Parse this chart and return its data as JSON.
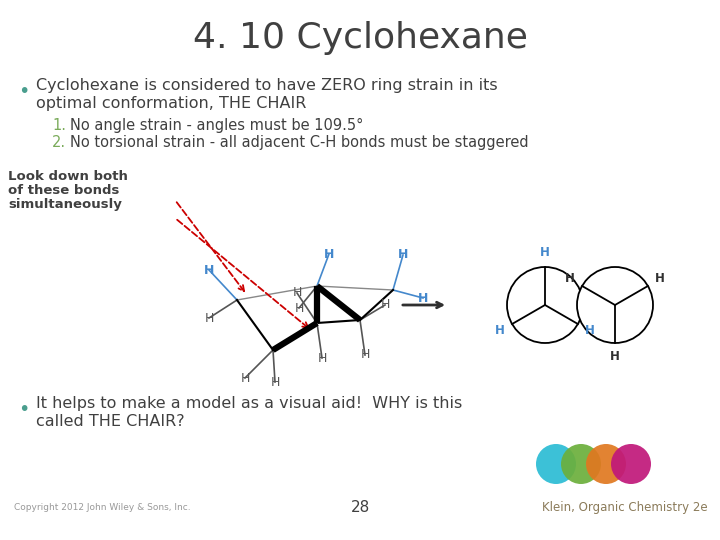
{
  "title": "4. 10 Cyclohexane",
  "title_fontsize": 26,
  "title_color": "#404040",
  "bg_color": "#ffffff",
  "bullet1_text1": "Cyclohexane is considered to have ZERO ring strain in its",
  "bullet1_text2": "optimal conformation, THE CHAIR",
  "item1_text": "No angle strain - angles must be 109.5°",
  "item2_text": "No torsional strain - all adjacent C-H bonds must be staggered",
  "bullet2_text1": "It helps to make a model as a visual aid!  WHY is this",
  "bullet2_text2": "called THE CHAIR?",
  "look_down_line1": "Look down both",
  "look_down_line2": "of these bonds",
  "look_down_line3": "simultaneously",
  "copyright_text": "Copyright 2012 John Wiley & Sons, Inc.",
  "page_num": "28",
  "klein_text": "Klein, Organic Chemistry 2e",
  "klein_color": "#8B7B5A",
  "bullet_color": "#4A9E8E",
  "number_color": "#7AAB5A",
  "main_text_color": "#404040",
  "circle_colors": [
    "#2BBCD4",
    "#6BAF3C",
    "#E07820",
    "#C0187A"
  ],
  "arrow_color": "#303030",
  "red_arrow_color": "#CC0000",
  "H_color_blue": "#4488CC",
  "H_color_black": "#303030",
  "H_color_gray": "#888888"
}
